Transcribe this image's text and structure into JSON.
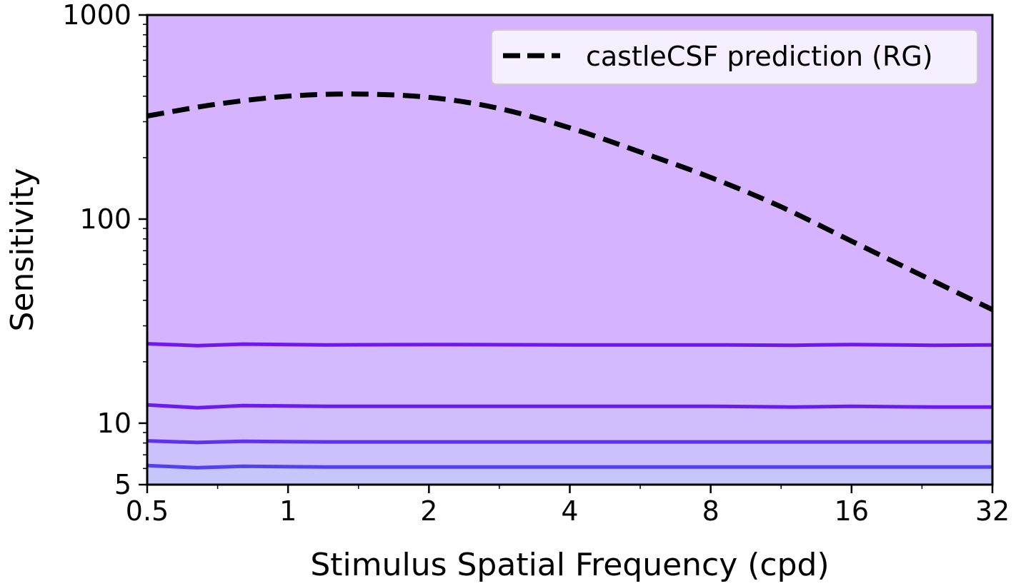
{
  "chart_data": {
    "type": "line",
    "xlabel": "Stimulus Spatial Frequency (cpd)",
    "ylabel": "Sensitivity",
    "x_scale": "log2",
    "y_scale": "log10",
    "xlim": [
      0.5,
      32
    ],
    "ylim": [
      5,
      1000
    ],
    "x_ticks": [
      0.5,
      1,
      2,
      4,
      8,
      16,
      32
    ],
    "x_tick_labels": [
      "0.5",
      "1",
      "2",
      "4",
      "8",
      "16",
      "32"
    ],
    "y_ticks": [
      5,
      10,
      100,
      1000
    ],
    "y_tick_labels": [
      "5",
      "10",
      "100",
      "1000"
    ],
    "grid": false,
    "legend": {
      "position": "top-right",
      "entries": [
        {
          "label": "castleCSF prediction (RG)",
          "style": "dashed",
          "color": "#000000"
        }
      ]
    },
    "prediction": {
      "name": "castleCSF prediction (RG)",
      "color": "#000000",
      "style": "dashed",
      "x": [
        0.5,
        0.7,
        1,
        1.4,
        2,
        2.8,
        4,
        5.6,
        8,
        11.3,
        16,
        22.6,
        32
      ],
      "y": [
        320,
        365,
        400,
        410,
        395,
        350,
        280,
        215,
        160,
        115,
        78,
        53,
        36
      ]
    },
    "series": [
      {
        "color": "#7017ef",
        "x": [
          0.5,
          0.64,
          0.8,
          1.2,
          2,
          4,
          8,
          12,
          16,
          24,
          32
        ],
        "y": [
          24.5,
          24.0,
          24.4,
          24.2,
          24.3,
          24.2,
          24.2,
          24.1,
          24.3,
          24.1,
          24.2
        ]
      },
      {
        "color": "#6a1cf0",
        "x": [
          0.5,
          0.64,
          0.8,
          1.2,
          2,
          4,
          8,
          12,
          16,
          24,
          32
        ],
        "y": [
          12.3,
          11.9,
          12.2,
          12.1,
          12.1,
          12.1,
          12.1,
          12.0,
          12.1,
          12.0,
          12.0
        ]
      },
      {
        "color": "#5e30f0",
        "x": [
          0.5,
          0.64,
          0.8,
          1.2,
          2,
          4,
          8,
          12,
          16,
          24,
          32
        ],
        "y": [
          8.2,
          8.05,
          8.15,
          8.1,
          8.1,
          8.1,
          8.1,
          8.1,
          8.1,
          8.1,
          8.1
        ]
      },
      {
        "color": "#5440f0",
        "x": [
          0.5,
          0.64,
          0.8,
          1.2,
          2,
          4,
          8,
          12,
          16,
          24,
          32
        ],
        "y": [
          6.2,
          6.05,
          6.15,
          6.1,
          6.1,
          6.1,
          6.1,
          6.1,
          6.1,
          6.1,
          6.1
        ]
      }
    ],
    "bands": [
      {
        "from": 5,
        "to": 6.1,
        "color": "#c6c6fb"
      },
      {
        "from": 6.1,
        "to": 8.1,
        "color": "#cbc2fb"
      },
      {
        "from": 8.1,
        "to": 12.1,
        "color": "#d0bdfc"
      },
      {
        "from": 12.1,
        "to": 24.2,
        "color": "#d3b9fd"
      },
      {
        "from": 24.2,
        "to": 1000,
        "color": "#d5b3ff"
      }
    ]
  }
}
